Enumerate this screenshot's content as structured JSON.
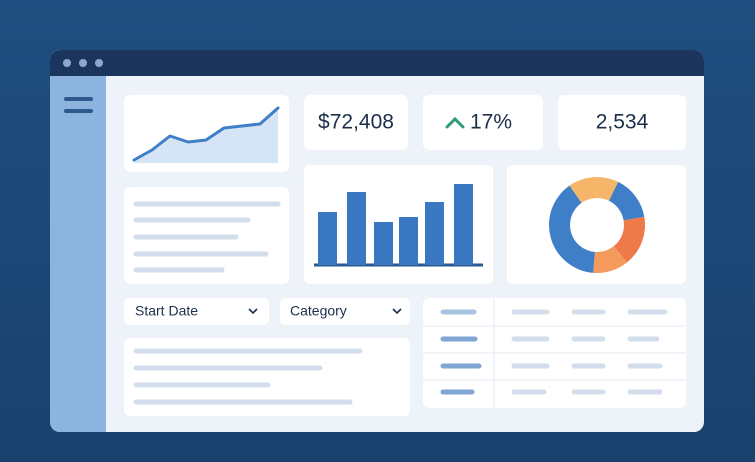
{
  "kpis": {
    "revenue": "$72,408",
    "growth": "17%",
    "count": "2,534"
  },
  "trend": {
    "values": [
      0,
      10,
      24,
      18,
      20,
      32,
      34,
      36,
      52
    ]
  },
  "bars": {
    "values": [
      53,
      73,
      43,
      48,
      63,
      81
    ]
  },
  "donut": {
    "segments": [
      {
        "value": 17,
        "color": "#f5b66a"
      },
      {
        "value": 15,
        "color": "#3f7fc8"
      },
      {
        "value": 17,
        "color": "#ee7a4a"
      },
      {
        "value": 12,
        "color": "#f49a5c"
      },
      {
        "value": 39,
        "color": "#3f7fc8"
      }
    ]
  },
  "filters": {
    "start_date": "Start Date",
    "category": "Category"
  }
}
